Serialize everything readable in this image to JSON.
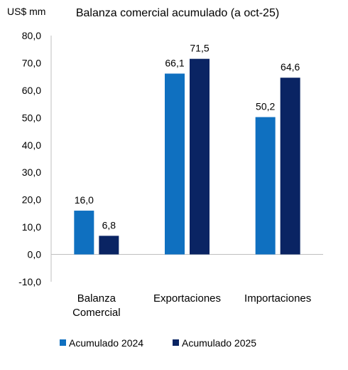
{
  "chart_data": {
    "type": "bar",
    "title": "Balanza comercial acumulado (a oct-25)",
    "unit_label": "US$ mm",
    "categories": [
      [
        "Balanza",
        "Comercial"
      ],
      [
        "Exportaciones"
      ],
      [
        "Importaciones"
      ]
    ],
    "series": [
      {
        "name": "Acumulado 2024",
        "color": "#0F70C0",
        "values": [
          16.0,
          66.1,
          50.2
        ],
        "labels": [
          "16,0",
          "66,1",
          "50,2"
        ]
      },
      {
        "name": "Acumulado 2025",
        "color": "#0A2463",
        "values": [
          6.8,
          71.5,
          64.6
        ],
        "labels": [
          "6,8",
          "71,5",
          "64,6"
        ]
      }
    ],
    "ylim": [
      -10,
      80
    ],
    "yticks": [
      -10,
      0,
      10,
      20,
      30,
      40,
      50,
      60,
      70,
      80
    ],
    "ytick_labels": [
      "-10,0",
      "0,0",
      "10,0",
      "20,0",
      "30,0",
      "40,0",
      "50,0",
      "60,0",
      "70,0",
      "80,0"
    ],
    "grid": false,
    "legend_position": "bottom"
  }
}
